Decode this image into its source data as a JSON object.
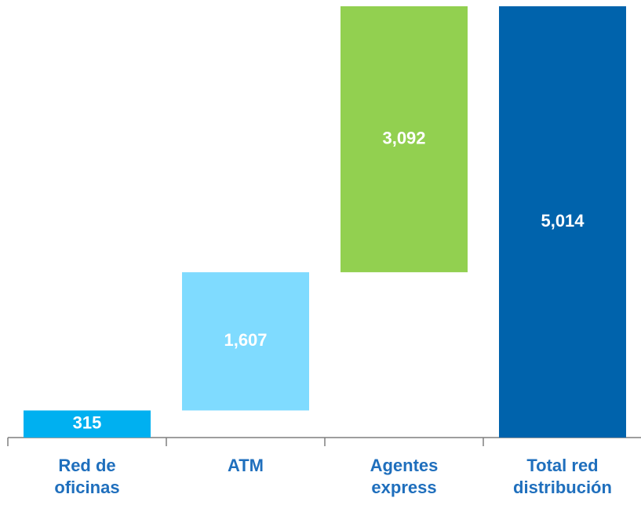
{
  "chart_data": {
    "type": "waterfall",
    "categories": [
      "Red de oficinas",
      "ATM",
      "Agentes express",
      "Total red distribución"
    ],
    "values": [
      315,
      1607,
      3092,
      5014
    ],
    "value_labels": [
      "315",
      "1,607",
      "3,092",
      "5,014"
    ],
    "colors": [
      "#00b0f0",
      "#7fdbff",
      "#92d050",
      "#0063ac"
    ]
  }
}
